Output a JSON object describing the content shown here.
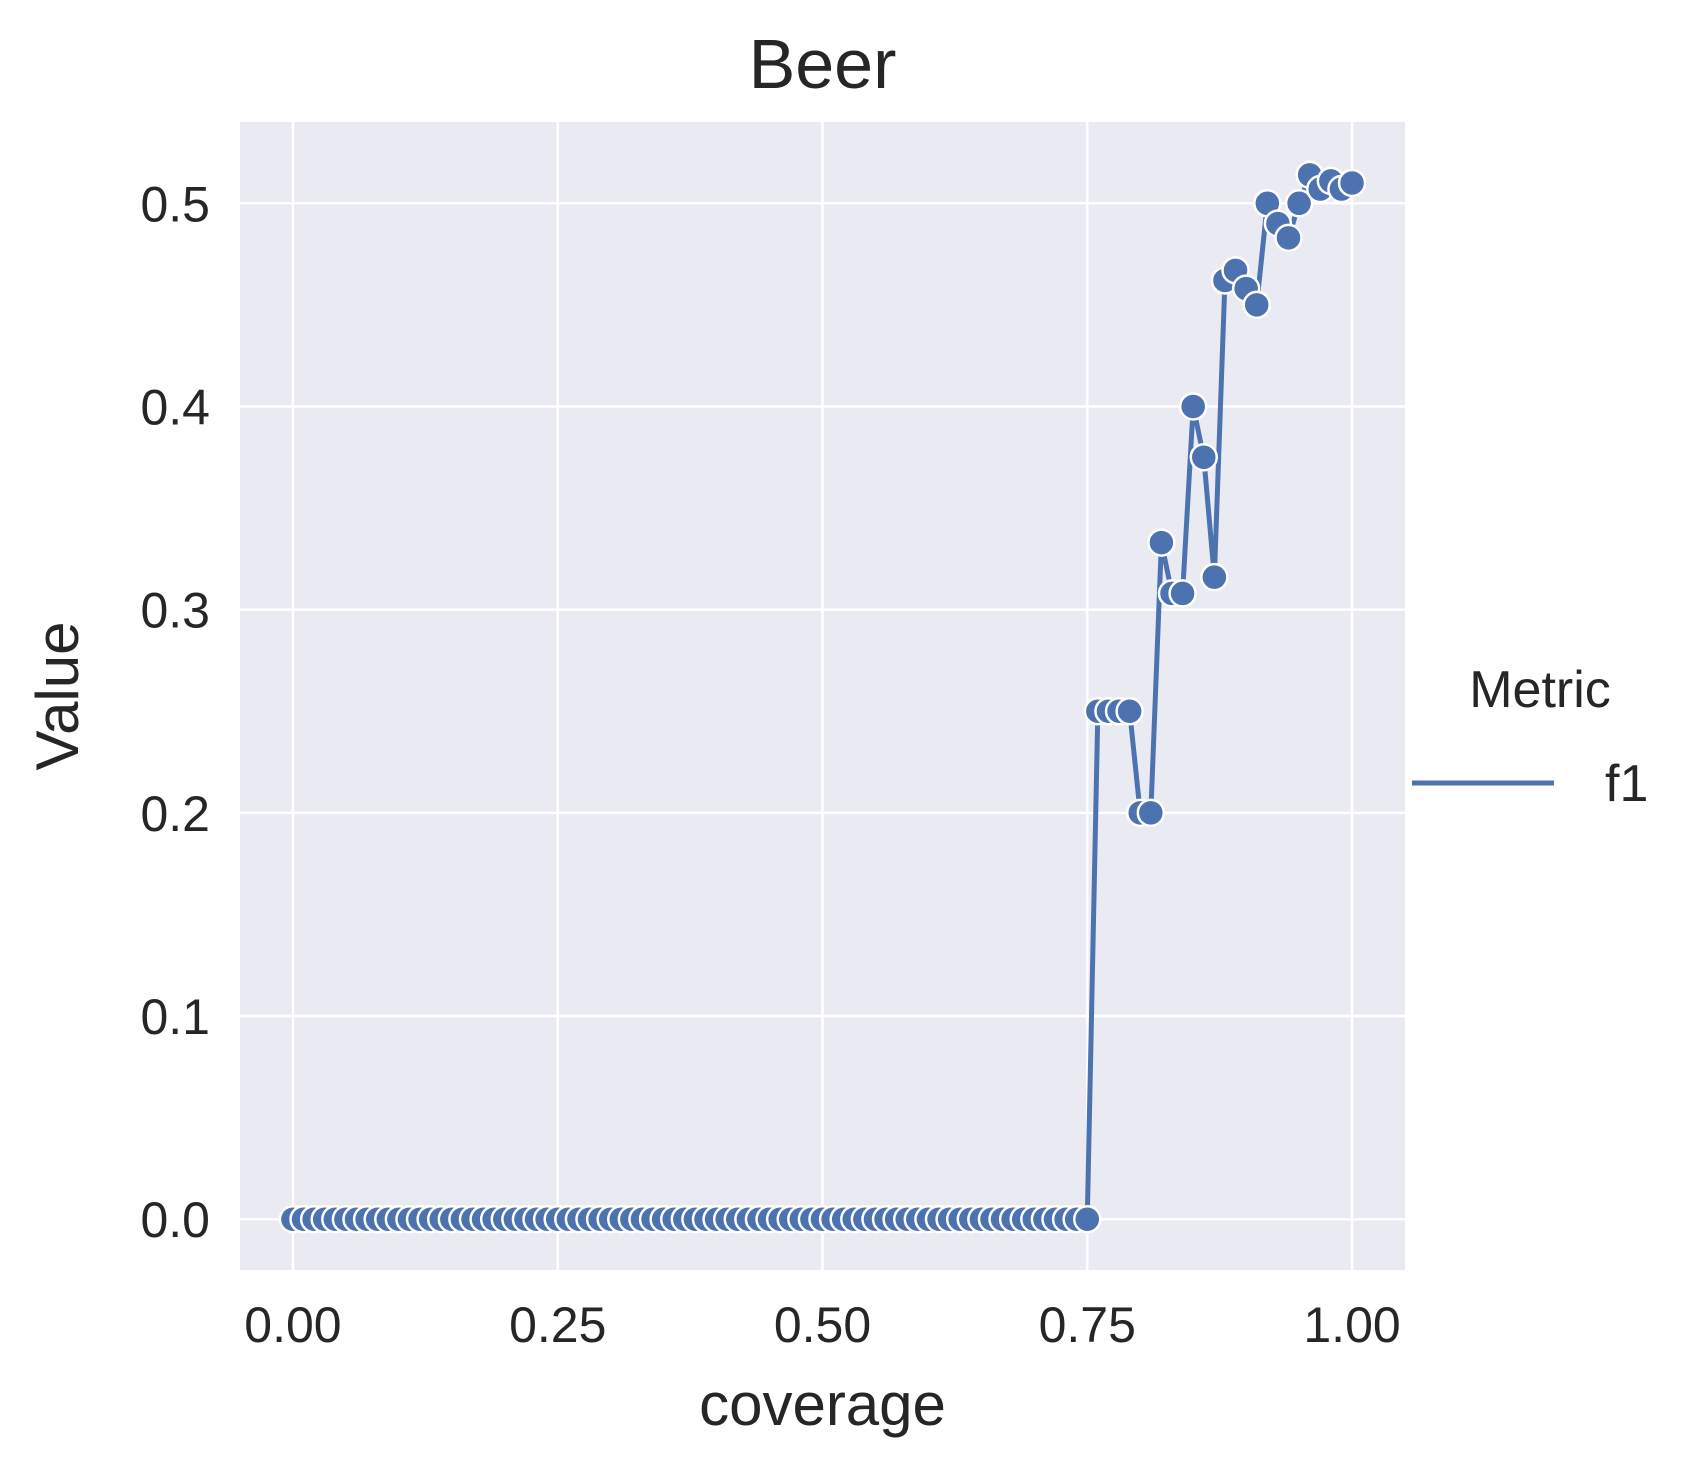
{
  "chart_data": {
    "type": "line",
    "title": "Beer",
    "xlabel": "coverage",
    "ylabel": "Value",
    "xlim": [
      -0.05,
      1.05
    ],
    "ylim": [
      -0.025,
      0.54
    ],
    "xticks": [
      0.0,
      0.25,
      0.5,
      0.75,
      1.0
    ],
    "xtick_labels": [
      "0.00",
      "0.25",
      "0.50",
      "0.75",
      "1.00"
    ],
    "yticks": [
      0.0,
      0.1,
      0.2,
      0.3,
      0.4,
      0.5
    ],
    "ytick_labels": [
      "0.0",
      "0.1",
      "0.2",
      "0.3",
      "0.4",
      "0.5"
    ],
    "grid": true,
    "legend": {
      "title": "Metric",
      "placement": "right",
      "entries": [
        "f1"
      ]
    },
    "background_color": "#eaeaf2",
    "series": [
      {
        "name": "f1",
        "color": "#4c72b0",
        "marker": "circle",
        "x": [
          0.0,
          0.01,
          0.02,
          0.03,
          0.04,
          0.05,
          0.06,
          0.07,
          0.08,
          0.09,
          0.1,
          0.11,
          0.12,
          0.13,
          0.14,
          0.15,
          0.16,
          0.17,
          0.18,
          0.19,
          0.2,
          0.21,
          0.22,
          0.23,
          0.24,
          0.25,
          0.26,
          0.27,
          0.28,
          0.29,
          0.3,
          0.31,
          0.32,
          0.33,
          0.34,
          0.35,
          0.36,
          0.37,
          0.38,
          0.39,
          0.4,
          0.41,
          0.42,
          0.43,
          0.44,
          0.45,
          0.46,
          0.47,
          0.48,
          0.49,
          0.5,
          0.51,
          0.52,
          0.53,
          0.54,
          0.55,
          0.56,
          0.57,
          0.58,
          0.59,
          0.6,
          0.61,
          0.62,
          0.63,
          0.64,
          0.65,
          0.66,
          0.67,
          0.68,
          0.69,
          0.7,
          0.71,
          0.72,
          0.73,
          0.74,
          0.75,
          0.76,
          0.77,
          0.78,
          0.79,
          0.8,
          0.81,
          0.82,
          0.83,
          0.84,
          0.85,
          0.86,
          0.87,
          0.88,
          0.89,
          0.9,
          0.91,
          0.92,
          0.93,
          0.94,
          0.95,
          0.96,
          0.97,
          0.98,
          0.99,
          1.0
        ],
        "values": [
          0,
          0,
          0,
          0,
          0,
          0,
          0,
          0,
          0,
          0,
          0,
          0,
          0,
          0,
          0,
          0,
          0,
          0,
          0,
          0,
          0,
          0,
          0,
          0,
          0,
          0,
          0,
          0,
          0,
          0,
          0,
          0,
          0,
          0,
          0,
          0,
          0,
          0,
          0,
          0,
          0,
          0,
          0,
          0,
          0,
          0,
          0,
          0,
          0,
          0,
          0,
          0,
          0,
          0,
          0,
          0,
          0,
          0,
          0,
          0,
          0,
          0,
          0,
          0,
          0,
          0,
          0,
          0,
          0,
          0,
          0,
          0,
          0,
          0,
          0,
          0,
          0.25,
          0.25,
          0.25,
          0.25,
          0.2,
          0.2,
          0.333,
          0.308,
          0.308,
          0.4,
          0.375,
          0.316,
          0.462,
          0.467,
          0.458,
          0.45,
          0.5,
          0.49,
          0.483,
          0.5,
          0.514,
          0.507,
          0.511,
          0.507,
          0.51
        ]
      }
    ]
  }
}
